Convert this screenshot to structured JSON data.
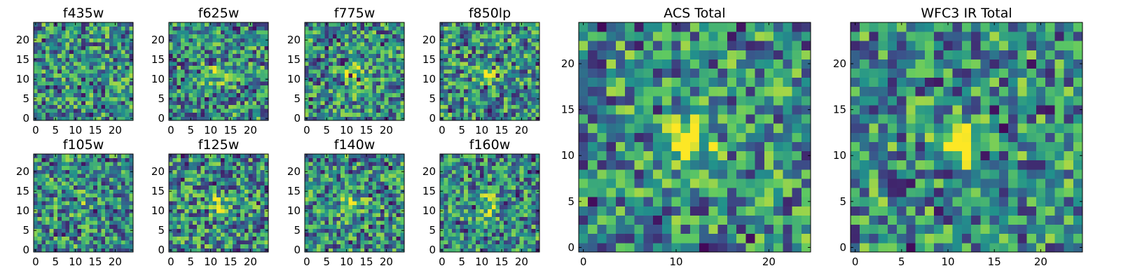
{
  "chart_data": [
    {
      "type": "heatmap",
      "title": "f435w",
      "xticks": [
        0,
        5,
        10,
        15,
        20
      ],
      "yticks": [
        0,
        5,
        10,
        15,
        20
      ],
      "xlim": [
        0,
        24
      ],
      "ylim": [
        0,
        24
      ],
      "seed": 11,
      "hotspot": 0.05
    },
    {
      "type": "heatmap",
      "title": "f625w",
      "xticks": [
        0,
        5,
        10,
        15,
        20
      ],
      "yticks": [
        0,
        5,
        10,
        15,
        20
      ],
      "xlim": [
        0,
        24
      ],
      "ylim": [
        0,
        24
      ],
      "seed": 23,
      "hotspot": 0.35
    },
    {
      "type": "heatmap",
      "title": "f775w",
      "xticks": [
        0,
        5,
        10,
        15,
        20
      ],
      "yticks": [
        0,
        5,
        10,
        15,
        20
      ],
      "xlim": [
        0,
        24
      ],
      "ylim": [
        0,
        24
      ],
      "seed": 37,
      "hotspot": 0.45
    },
    {
      "type": "heatmap",
      "title": "f850lp",
      "xticks": [
        0,
        5,
        10,
        15,
        20
      ],
      "yticks": [
        0,
        5,
        10,
        15,
        20
      ],
      "xlim": [
        0,
        24
      ],
      "ylim": [
        0,
        24
      ],
      "seed": 41,
      "hotspot": 0.35
    },
    {
      "type": "heatmap",
      "title": "f105w",
      "xticks": [
        0,
        5,
        10,
        15,
        20
      ],
      "yticks": [
        0,
        5,
        10,
        15,
        20
      ],
      "xlim": [
        0,
        24
      ],
      "ylim": [
        0,
        24
      ],
      "seed": 53,
      "hotspot": 0.1
    },
    {
      "type": "heatmap",
      "title": "f125w",
      "xticks": [
        0,
        5,
        10,
        15,
        20
      ],
      "yticks": [
        0,
        5,
        10,
        15,
        20
      ],
      "xlim": [
        0,
        24
      ],
      "ylim": [
        0,
        24
      ],
      "seed": 67,
      "hotspot": 0.3
    },
    {
      "type": "heatmap",
      "title": "f140w",
      "xticks": [
        0,
        5,
        10,
        15,
        20
      ],
      "yticks": [
        0,
        5,
        10,
        15,
        20
      ],
      "xlim": [
        0,
        24
      ],
      "ylim": [
        0,
        24
      ],
      "seed": 71,
      "hotspot": 0.35
    },
    {
      "type": "heatmap",
      "title": "f160w",
      "xticks": [
        0,
        5,
        10,
        15,
        20
      ],
      "yticks": [
        0,
        5,
        10,
        15,
        20
      ],
      "xlim": [
        0,
        24
      ],
      "ylim": [
        0,
        24
      ],
      "seed": 89,
      "hotspot": 0.4
    },
    {
      "type": "heatmap",
      "title": "ACS Total",
      "xticks": [
        0,
        10,
        20
      ],
      "yticks": [
        0,
        5,
        10,
        15,
        20
      ],
      "xlim": [
        0,
        24
      ],
      "ylim": [
        0,
        24
      ],
      "seed": 97,
      "hotspot": 0.55
    },
    {
      "type": "heatmap",
      "title": "WFC3 IR Total",
      "xticks": [
        0,
        5,
        10,
        15,
        20
      ],
      "yticks": [
        0,
        5,
        10,
        15,
        20
      ],
      "xlim": [
        0,
        24
      ],
      "ylim": [
        0,
        24
      ],
      "seed": 101,
      "hotspot": 0.55
    }
  ],
  "colormap": [
    "#440154",
    "#3b528b",
    "#21918c",
    "#5ec962",
    "#fde725"
  ]
}
